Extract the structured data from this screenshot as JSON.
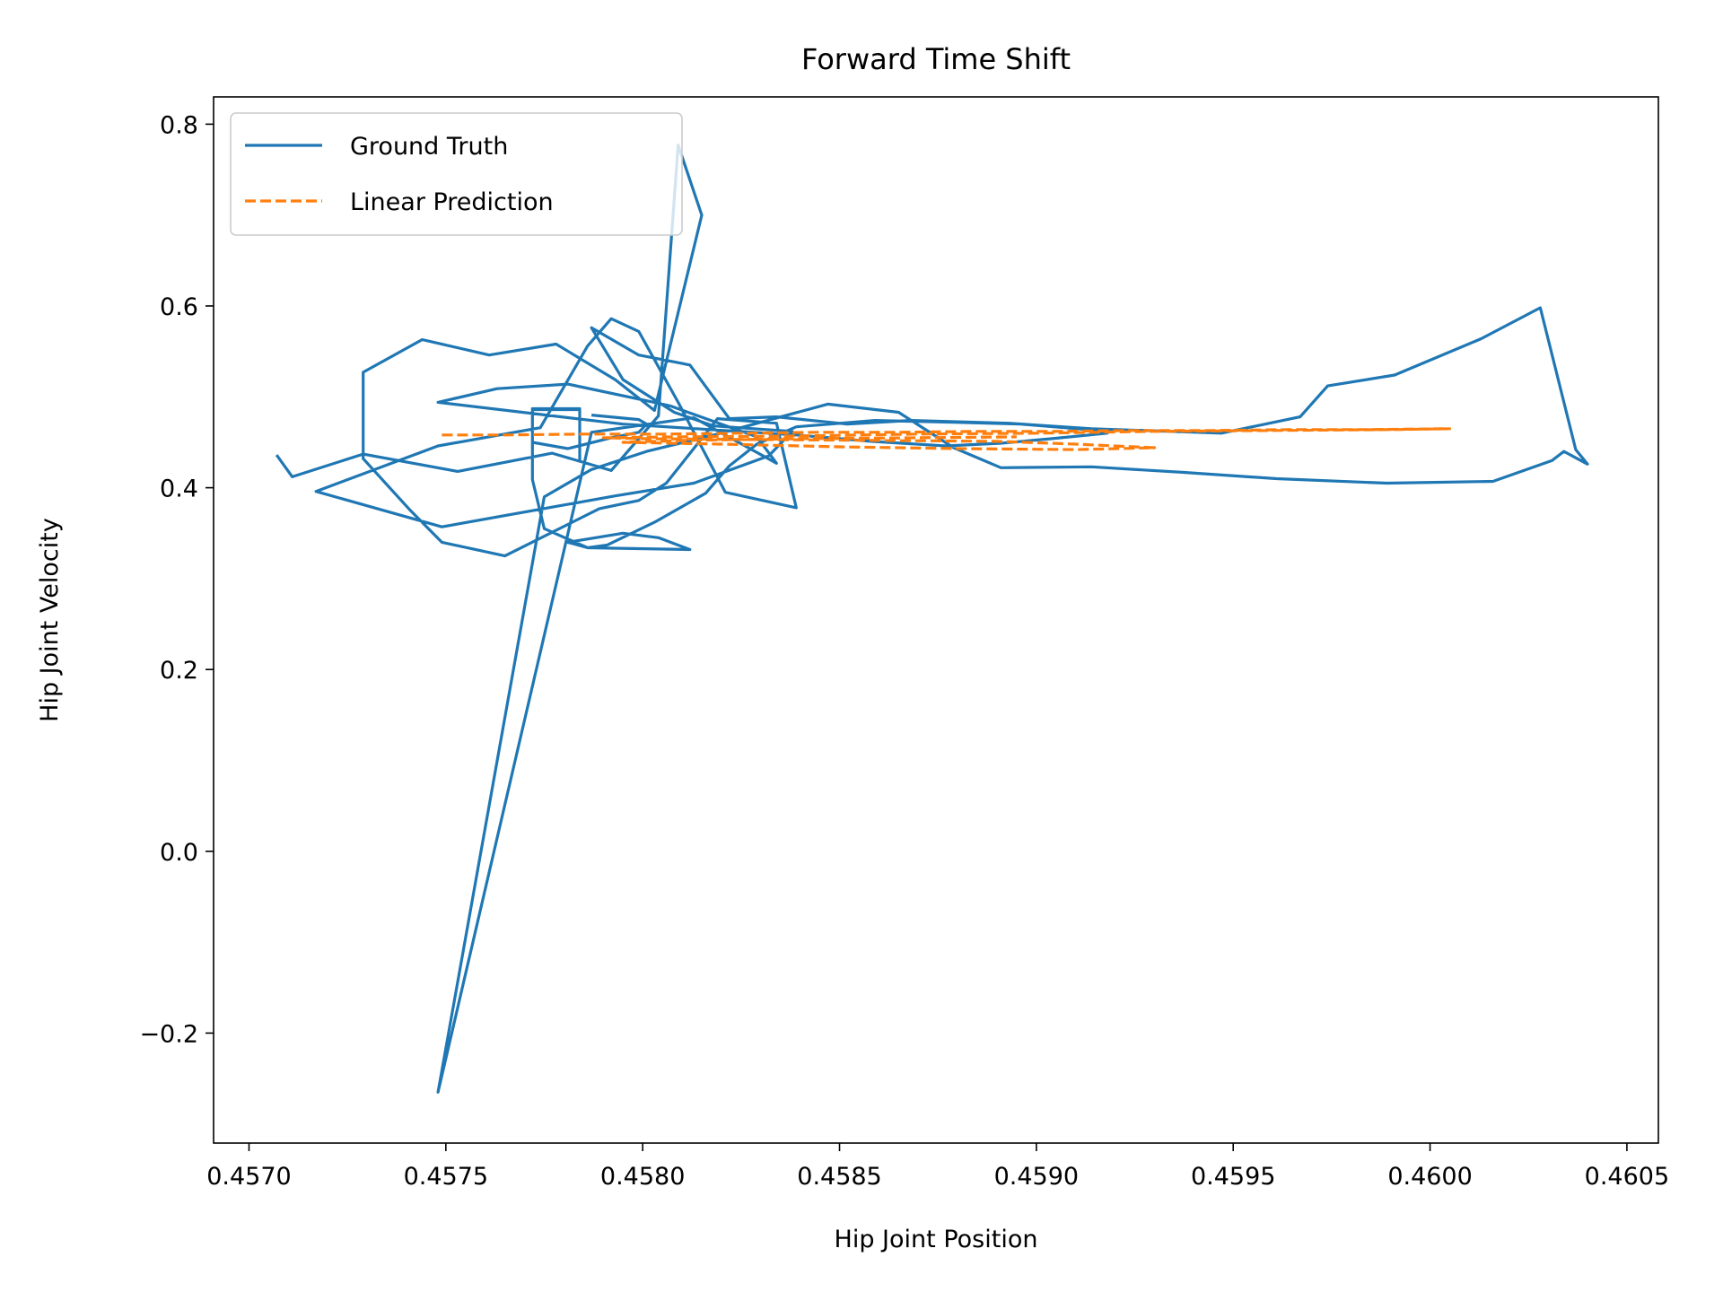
{
  "chart_data": {
    "type": "line",
    "title": "Forward Time Shift",
    "xlabel": "Hip Joint Position",
    "ylabel": "Hip Joint Velocity",
    "xlim": [
      0.45691,
      0.46058
    ],
    "ylim": [
      -0.321,
      0.83
    ],
    "xticks": [
      0.457,
      0.4575,
      0.458,
      0.4585,
      0.459,
      0.4595,
      0.46,
      0.4605
    ],
    "xtick_labels": [
      "0.4570",
      "0.4575",
      "0.4580",
      "0.4585",
      "0.4590",
      "0.4595",
      "0.4600",
      "0.4605"
    ],
    "yticks": [
      -0.2,
      0.0,
      0.2,
      0.4,
      0.6,
      0.8
    ],
    "ytick_labels": [
      "−0.2",
      "0.0",
      "0.2",
      "0.4",
      "0.6",
      "0.8"
    ],
    "legend_position": "upper-left",
    "series": [
      {
        "name": "Ground Truth",
        "color": "#1f77b4",
        "style": "solid",
        "x": [
          0.45707,
          0.45711,
          0.45729,
          0.45753,
          0.45777,
          0.45792,
          0.45804,
          0.45809,
          0.45815,
          0.45803,
          0.45793,
          0.45778,
          0.45761,
          0.45744,
          0.45729,
          0.45729,
          0.45741,
          0.45749,
          0.45765,
          0.45789,
          0.45799,
          0.45806,
          0.45819,
          0.45834,
          0.45839,
          0.45821,
          0.45809,
          0.45799,
          0.45792,
          0.45786,
          0.45774,
          0.45748,
          0.45717,
          0.45749,
          0.45793,
          0.45813,
          0.45832,
          0.45838,
          0.45818,
          0.45808,
          0.45795,
          0.45787,
          0.45799,
          0.45812,
          0.45822,
          0.45834,
          0.45852,
          0.45868,
          0.45893,
          0.45914,
          0.45934,
          0.45947,
          0.45967,
          0.45974,
          0.45991,
          0.46013,
          0.46028,
          0.46037,
          0.4604,
          0.46034,
          0.46031,
          0.46016,
          0.45989,
          0.45961,
          0.45937,
          0.45914,
          0.45891,
          0.45879,
          0.45865,
          0.45847,
          0.45819,
          0.45801,
          0.45787,
          0.45775,
          0.45748,
          0.45787,
          0.45813,
          0.45834,
          0.45829,
          0.45807,
          0.45804,
          0.45781,
          0.45763,
          0.45748,
          0.45795,
          0.45839,
          0.45858,
          0.45877,
          0.45891,
          0.45904,
          0.45918,
          0.45913,
          0.45896,
          0.45879,
          0.45859,
          0.45839,
          0.45829,
          0.45822,
          0.45816,
          0.45803,
          0.45791,
          0.45786,
          0.45781,
          0.45795,
          0.45804,
          0.45812,
          0.45786,
          0.45775,
          0.45772,
          0.45772,
          0.45784,
          0.45784,
          0.45784,
          0.45784,
          0.45784,
          0.45784,
          0.45772,
          0.45772,
          0.45781,
          0.45792,
          0.45799,
          0.45801,
          0.45799,
          0.45787
        ],
        "y": [
          0.436,
          0.412,
          0.437,
          0.418,
          0.438,
          0.419,
          0.479,
          0.777,
          0.7,
          0.485,
          0.519,
          0.558,
          0.546,
          0.563,
          0.527,
          0.432,
          0.375,
          0.34,
          0.325,
          0.377,
          0.386,
          0.405,
          0.476,
          0.471,
          0.378,
          0.395,
          0.494,
          0.572,
          0.586,
          0.556,
          0.466,
          0.446,
          0.396,
          0.357,
          0.391,
          0.405,
          0.435,
          0.462,
          0.468,
          0.483,
          0.519,
          0.576,
          0.546,
          0.535,
          0.476,
          0.478,
          0.47,
          0.474,
          0.471,
          0.465,
          0.462,
          0.46,
          0.478,
          0.512,
          0.524,
          0.564,
          0.598,
          0.442,
          0.426,
          0.44,
          0.43,
          0.407,
          0.405,
          0.41,
          0.417,
          0.423,
          0.422,
          0.444,
          0.483,
          0.492,
          0.459,
          0.44,
          0.42,
          0.39,
          -0.265,
          0.461,
          0.477,
          0.427,
          0.456,
          0.49,
          0.493,
          0.514,
          0.509,
          0.494,
          0.47,
          0.458,
          0.451,
          0.446,
          0.449,
          0.454,
          0.46,
          0.464,
          0.47,
          0.472,
          0.474,
          0.467,
          0.448,
          0.424,
          0.394,
          0.362,
          0.337,
          0.334,
          0.34,
          0.35,
          0.345,
          0.332,
          0.334,
          0.355,
          0.409,
          0.487,
          0.487,
          0.46,
          0.43,
          0.445,
          0.46,
          0.486,
          0.486,
          0.45,
          0.443,
          0.455,
          0.461,
          0.47,
          0.475,
          0.48
        ]
      },
      {
        "name": "Linear Prediction",
        "color": "#ff7f0e",
        "style": "dashed",
        "x": [
          0.45749,
          0.45765,
          0.45785,
          0.45805,
          0.45825,
          0.45845,
          0.45865,
          0.45885,
          0.45905,
          0.45925,
          0.45945,
          0.45965,
          0.45985,
          0.46005,
          0.4599,
          0.4596,
          0.4593,
          0.459,
          0.4587,
          0.4584,
          0.4581,
          0.4579,
          0.458,
          0.4583,
          0.4586,
          0.4589,
          0.4591,
          0.4593,
          0.4591,
          0.4588,
          0.4585,
          0.4582,
          0.45795,
          0.4581,
          0.4584,
          0.4587,
          0.45895
        ],
        "y": [
          0.458,
          0.458,
          0.459,
          0.459,
          0.46,
          0.461,
          0.461,
          0.462,
          0.462,
          0.463,
          0.463,
          0.464,
          0.464,
          0.465,
          0.464,
          0.463,
          0.462,
          0.46,
          0.459,
          0.457,
          0.456,
          0.455,
          0.454,
          0.453,
          0.452,
          0.451,
          0.448,
          0.444,
          0.442,
          0.443,
          0.445,
          0.448,
          0.45,
          0.452,
          0.454,
          0.455,
          0.456
        ]
      }
    ]
  }
}
